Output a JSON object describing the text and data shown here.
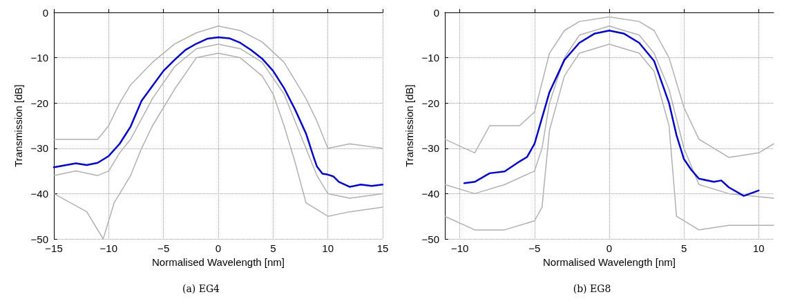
{
  "chart_data": [
    {
      "type": "line",
      "subtitle": "(a) EG4",
      "xlabel": "Normalised Wavelength [nm]",
      "ylabel": "Transmission [dB]",
      "xlim": [
        -15,
        15
      ],
      "xticks": [
        -15,
        -10,
        -5,
        0,
        5,
        10,
        15
      ],
      "ylim": [
        -50,
        0
      ],
      "yticks": [
        -50,
        -40,
        -30,
        -20,
        -10,
        0
      ],
      "grid": true,
      "marker": "none",
      "line_style": "solid",
      "series": [
        {
          "color": "#b0b0b0",
          "x": [
            -15,
            -13,
            -11,
            -10,
            -9,
            -8,
            -6,
            -4,
            -2,
            0,
            2,
            4,
            6,
            8,
            9,
            10,
            12,
            15
          ],
          "values": [
            -28,
            -28,
            -28,
            -25,
            -20,
            -16,
            -11,
            -7,
            -4.5,
            -3,
            -4,
            -6.5,
            -11,
            -19,
            -24,
            -30,
            -29,
            -30
          ]
        },
        {
          "color": "#b0b0b0",
          "x": [
            -15,
            -12,
            -10.5,
            -9.5,
            -8,
            -7,
            -6,
            -4,
            -2,
            0,
            2,
            4,
            5,
            6,
            7,
            8,
            10,
            12,
            15
          ],
          "values": [
            -40,
            -44,
            -50,
            -42,
            -36,
            -30,
            -25,
            -17,
            -10,
            -9,
            -10,
            -14,
            -18,
            -25,
            -33,
            -42,
            -45,
            -44,
            -43
          ]
        },
        {
          "color": "#b0b0b0",
          "x": [
            -15,
            -13,
            -11,
            -10,
            -9,
            -8,
            -6,
            -4,
            -2,
            0,
            2,
            4,
            6,
            7,
            8,
            9,
            10,
            12,
            15
          ],
          "values": [
            -36,
            -35,
            -36,
            -35,
            -31,
            -28,
            -19,
            -12,
            -8,
            -7,
            -8,
            -11,
            -18,
            -24,
            -30,
            -36,
            -40,
            -41,
            -40
          ]
        },
        {
          "color": "#0000c8",
          "x": [
            -15,
            -13,
            -12,
            -11,
            -10,
            -9,
            -8.5,
            -8,
            -7,
            -6,
            -5,
            -4,
            -3,
            -2,
            -1,
            0,
            1,
            2,
            3,
            4,
            5,
            6,
            7,
            8,
            8.7,
            9,
            9.5,
            10,
            10.5,
            11,
            12,
            13,
            14,
            15
          ],
          "values": [
            -34.2,
            -33.3,
            -33.7,
            -33.2,
            -31.7,
            -29,
            -27.1,
            -25.2,
            -19.5,
            -16.2,
            -12.9,
            -10.5,
            -8.3,
            -6.9,
            -5.8,
            -5.5,
            -5.7,
            -6.7,
            -8.3,
            -10.2,
            -12.9,
            -16.7,
            -21.4,
            -26.7,
            -31.9,
            -34,
            -35.6,
            -35.8,
            -36.2,
            -37.4,
            -38.5,
            -38,
            -38.3,
            -38
          ]
        }
      ]
    },
    {
      "type": "line",
      "subtitle": "(b) EG8",
      "xlabel": "Normalised Wavelength [nm]",
      "ylabel": "Transmission [dB]",
      "xlim": [
        -11,
        11
      ],
      "xticks": [
        -10,
        -5,
        0,
        5,
        10
      ],
      "ylim": [
        -50,
        0
      ],
      "yticks": [
        -50,
        -40,
        -30,
        -20,
        -10,
        0
      ],
      "grid": true,
      "marker": "none",
      "line_style": "solid",
      "series": [
        {
          "color": "#b0b0b0",
          "x": [
            -11,
            -9,
            -8,
            -6,
            -5,
            -4,
            -3,
            -2,
            0,
            2,
            3,
            4,
            5,
            6,
            8,
            10,
            11
          ],
          "values": [
            -28,
            -31,
            -25,
            -25,
            -22,
            -9,
            -4,
            -2,
            -1,
            -2,
            -4,
            -10,
            -21,
            -28,
            -32,
            -31,
            -29
          ]
        },
        {
          "color": "#b0b0b0",
          "x": [
            -11,
            -9,
            -7,
            -5,
            -4.5,
            -4,
            -3,
            -2,
            0,
            2,
            3,
            4,
            4.5,
            6,
            8,
            11
          ],
          "values": [
            -45,
            -48,
            -48,
            -46,
            -43,
            -26,
            -14,
            -9,
            -7,
            -9,
            -13,
            -25,
            -45,
            -48,
            -47,
            -47
          ]
        },
        {
          "color": "#b0b0b0",
          "x": [
            -11,
            -9,
            -7,
            -5,
            -4.5,
            -4,
            -3,
            -2,
            0,
            2,
            3,
            4,
            5,
            6,
            8,
            11
          ],
          "values": [
            -38,
            -40,
            -38,
            -35,
            -30,
            -20,
            -10,
            -5,
            -3,
            -5,
            -9,
            -17,
            -30,
            -38,
            -40,
            -41
          ]
        },
        {
          "color": "#0000c8",
          "x": [
            -9.7,
            -9,
            -8,
            -7,
            -6,
            -5.5,
            -5,
            -4.5,
            -4,
            -3,
            -2,
            -1,
            0,
            1,
            2,
            3,
            4,
            4.5,
            5,
            5.5,
            6,
            7,
            7.5,
            8,
            9,
            10
          ],
          "values": [
            -37.7,
            -37.4,
            -35.5,
            -35.1,
            -32.9,
            -31.9,
            -29,
            -23.3,
            -17.6,
            -10.5,
            -6.7,
            -4.7,
            -4,
            -4.7,
            -6.7,
            -10.7,
            -20,
            -27.1,
            -32.4,
            -34.8,
            -36.7,
            -37.4,
            -37.1,
            -38.6,
            -40.5,
            -39.3
          ]
        }
      ]
    }
  ]
}
